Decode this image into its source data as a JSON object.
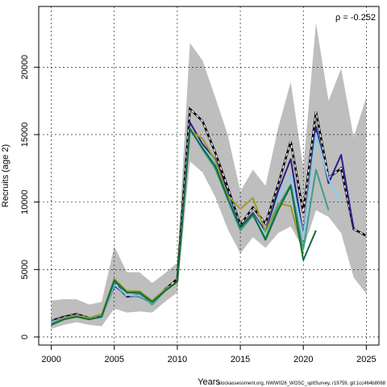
{
  "chart_data": {
    "type": "line",
    "xlabel": "Years",
    "ylabel": "Recruits (age 2)",
    "xlim": [
      1999,
      2026
    ],
    "ylim": [
      -600,
      24500
    ],
    "x_ticks": [
      2000,
      2005,
      2010,
      2015,
      2020,
      2025
    ],
    "y_ticks": [
      0,
      5000,
      10000,
      15000,
      20000
    ],
    "grid": true,
    "annotation": "ρ = -0.252",
    "footer": "stockassessment.org, NWW026_WOSC_spltSurvey, r19759, git:1cc464b8068",
    "band": {
      "color": "#bebebe",
      "x": [
        2000,
        2001,
        2002,
        2003,
        2004,
        2005,
        2006,
        2007,
        2008,
        2009,
        2010,
        2011,
        2012,
        2013,
        2014,
        2015,
        2016,
        2017,
        2018,
        2019,
        2020,
        2021,
        2022,
        2023,
        2024,
        2025
      ],
      "upper": [
        2700,
        2800,
        2800,
        2400,
        2600,
        6700,
        4800,
        4800,
        4000,
        4700,
        5500,
        21800,
        20500,
        17800,
        15000,
        10800,
        12400,
        11200,
        15500,
        18900,
        12500,
        23300,
        17500,
        19900,
        14800,
        17800
      ],
      "lower": [
        600,
        900,
        1100,
        900,
        800,
        2100,
        1800,
        1900,
        1800,
        2600,
        3300,
        13000,
        12200,
        10400,
        8000,
        6200,
        7400,
        6600,
        7700,
        8200,
        6500,
        9400,
        8900,
        7700,
        4400,
        3200
      ]
    },
    "series": [
      {
        "color": "#000000",
        "dashed": true,
        "x": [
          2000,
          2001,
          2002,
          2003,
          2004,
          2005,
          2006,
          2007,
          2008,
          2009,
          2010,
          2011,
          2012,
          2013,
          2014,
          2015,
          2016,
          2017,
          2018,
          2019,
          2020,
          2021,
          2022,
          2023,
          2024,
          2025
        ],
        "values": [
          1200,
          1500,
          1700,
          1400,
          1500,
          4000,
          3000,
          3100,
          2500,
          3500,
          4300,
          16900,
          16000,
          13700,
          11100,
          8300,
          9600,
          8400,
          11300,
          14500,
          9200,
          16700,
          11800,
          12500,
          8000,
          7500
        ]
      },
      {
        "color": "#2a1e8c",
        "x": [
          2000,
          2001,
          2002,
          2003,
          2004,
          2005,
          2006,
          2007,
          2008,
          2009,
          2010,
          2011,
          2012,
          2013,
          2014,
          2015,
          2016,
          2017,
          2018,
          2019,
          2020,
          2021,
          2022,
          2023,
          2024
        ],
        "values": [
          1150,
          1450,
          1650,
          1350,
          1450,
          3800,
          3100,
          3000,
          2500,
          3400,
          4100,
          15900,
          14300,
          13200,
          10800,
          8100,
          9200,
          7800,
          10800,
          13200,
          7500,
          15600,
          11400,
          13500,
          8000
        ]
      },
      {
        "color": "#87ceeb",
        "x": [
          2000,
          2001,
          2002,
          2003,
          2004,
          2005,
          2006,
          2007,
          2008,
          2009,
          2010,
          2011,
          2012,
          2013,
          2014,
          2015,
          2016,
          2017,
          2018,
          2019,
          2020,
          2021,
          2022,
          2023
        ],
        "values": [
          1100,
          1400,
          1600,
          1350,
          1400,
          3900,
          3100,
          3050,
          2500,
          3400,
          4100,
          15400,
          14100,
          12900,
          10500,
          8000,
          9100,
          7600,
          10300,
          12000,
          7400,
          15100,
          11700,
          10000
        ]
      },
      {
        "color": "#3c9e8c",
        "x": [
          2000,
          2001,
          2002,
          2003,
          2004,
          2005,
          2006,
          2007,
          2008,
          2009,
          2010,
          2011,
          2012,
          2013,
          2014,
          2015,
          2016,
          2017,
          2018,
          2019,
          2020,
          2021,
          2022
        ],
        "values": [
          1000,
          1400,
          1600,
          1300,
          1500,
          4100,
          3300,
          3200,
          2400,
          3400,
          4100,
          15500,
          13900,
          12500,
          10200,
          7900,
          9000,
          7300,
          9700,
          11300,
          6500,
          12400,
          9400
        ]
      },
      {
        "color": "#9e9a2a",
        "x": [
          2000,
          2001,
          2002,
          2003,
          2004,
          2005,
          2006,
          2007,
          2008,
          2009,
          2010,
          2011,
          2012,
          2013,
          2014,
          2015,
          2016,
          2017,
          2018,
          2019,
          2020
        ],
        "values": [
          900,
          1400,
          1600,
          1400,
          1700,
          4300,
          3400,
          3400,
          2700,
          3500,
          4100,
          15300,
          14700,
          13100,
          10500,
          9500,
          10300,
          7800,
          9900,
          9700,
          6200
        ]
      },
      {
        "color": "#0f6e3c",
        "x": [
          2000,
          2001,
          2002,
          2003,
          2004,
          2005,
          2006,
          2007,
          2008,
          2009,
          2010,
          2011,
          2012,
          2013,
          2014,
          2015,
          2016,
          2017,
          2018,
          2019,
          2020,
          2021
        ],
        "values": [
          900,
          1300,
          1500,
          1300,
          1500,
          4200,
          3300,
          3300,
          2600,
          3400,
          4100,
          15400,
          14000,
          12700,
          10300,
          8100,
          9100,
          7200,
          9400,
          11200,
          5700,
          7900
        ]
      }
    ]
  }
}
